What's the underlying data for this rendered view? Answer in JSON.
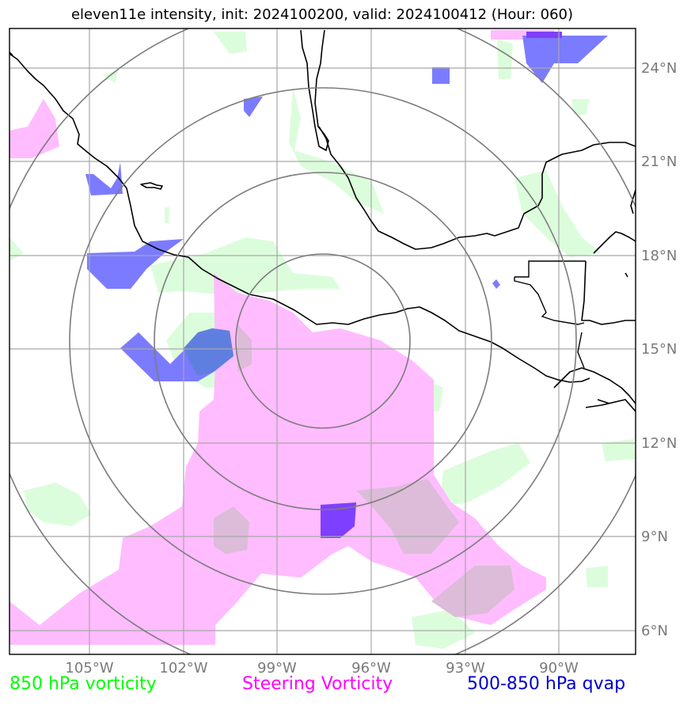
{
  "title": "eleven11e intensity, init: 2024100200, valid: 2024100412 (Hour: 060)",
  "lon_ticks": [
    "105°W",
    "102°W",
    "99°W",
    "96°W",
    "93°W",
    "90°W"
  ],
  "lat_ticks": [
    "24°N",
    "21°N",
    "18°N",
    "15°N",
    "12°N",
    "9°N",
    "6°N"
  ],
  "legend": {
    "vorticity_850": {
      "label": "850 hPa vorticity",
      "color": "#00ff00"
    },
    "steering": {
      "label": "Steering Vorticity",
      "color": "#ff00ff"
    },
    "qvap": {
      "label": "500-850 hPa qvap",
      "color": "#0000cc"
    }
  },
  "fill_colors": {
    "vorticity_850": "#dcfddc",
    "steering": "#ffbcff",
    "qvap": "#7b7bff",
    "overlap": "#dcbcd8"
  }
}
